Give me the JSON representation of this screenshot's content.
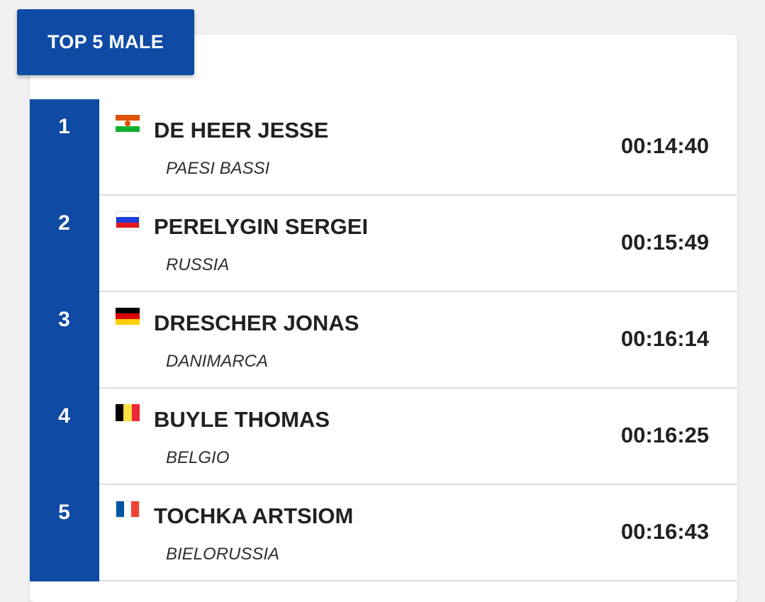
{
  "header": {
    "title": "TOP 5 MALE"
  },
  "colors": {
    "brand_blue": "#0f4aa4",
    "card_background": "#ffffff",
    "page_background": "#f1f1f1"
  },
  "rows": [
    {
      "rank": "1",
      "name": "DE HEER JESSE",
      "country": "PAESI BASSI",
      "time": "00:14:40",
      "flag_icon": "niger-flag-icon"
    },
    {
      "rank": "2",
      "name": "PERELYGIN SERGEI",
      "country": "RUSSIA",
      "time": "00:15:49",
      "flag_icon": "russia-flag-icon"
    },
    {
      "rank": "3",
      "name": "DRESCHER JONAS",
      "country": "DANIMARCA",
      "time": "00:16:14",
      "flag_icon": "germany-flag-icon"
    },
    {
      "rank": "4",
      "name": "BUYLE THOMAS",
      "country": "BELGIO",
      "time": "00:16:25",
      "flag_icon": "belgium-flag-icon"
    },
    {
      "rank": "5",
      "name": "TOCHKA ARTSIOM",
      "country": "BIELORUSSIA",
      "time": "00:16:43",
      "flag_icon": "france-flag-icon"
    }
  ]
}
